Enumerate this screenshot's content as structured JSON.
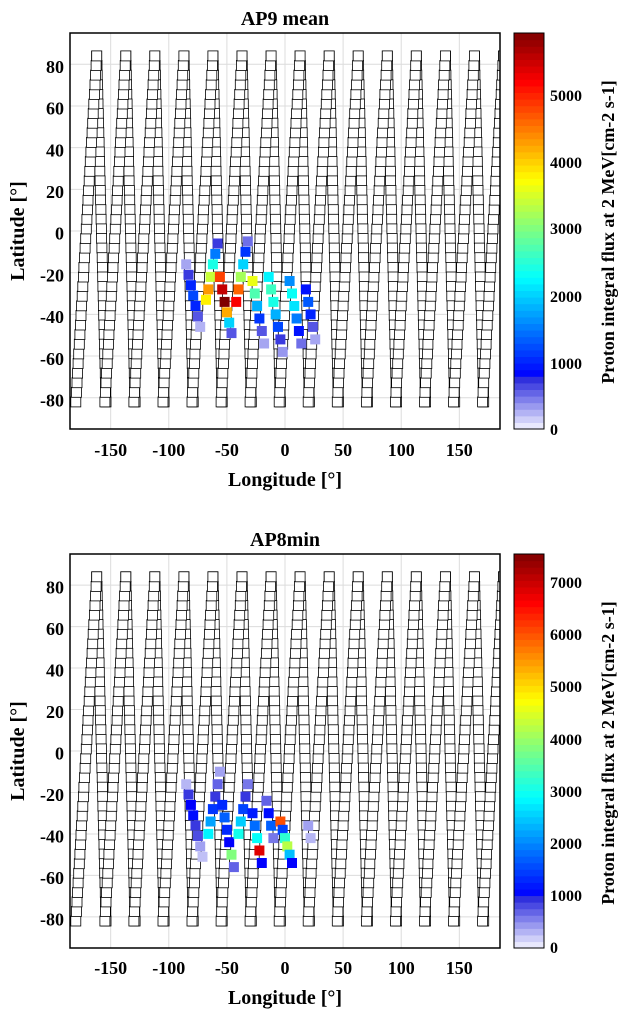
{
  "chart_data": [
    {
      "type": "scatter",
      "title": "AP9 mean",
      "xlabel": "Longitude [°]",
      "ylabel": "Latitude [°]",
      "xlim": [
        -185,
        185
      ],
      "ylim": [
        -95,
        95
      ],
      "x_ticks": [
        "-150",
        "-100",
        "-50",
        "0",
        "50",
        "100",
        "150"
      ],
      "y_ticks": [
        "80",
        "60",
        "40",
        "20",
        "0",
        "-20",
        "-40",
        "-60",
        "-80"
      ],
      "grid": true,
      "marker": "square",
      "colorbar": {
        "label": "Proton integral flux at 2 MeV[cm-2 s-1]",
        "range": [
          0,
          5900
        ],
        "ticks": [
          "0",
          "1000",
          "2000",
          "3000",
          "4000",
          "5000"
        ],
        "colormap": "jet"
      },
      "orbit_tracks": [
        {
          "lon": -180,
          "lat_low": -82,
          "lat_high": 84
        },
        {
          "lon": -155,
          "lat_low": -82,
          "lat_high": 84
        },
        {
          "lon": -130,
          "lat_low": -82,
          "lat_high": 84
        },
        {
          "lon": -105,
          "lat_low": -82,
          "lat_high": 84
        },
        {
          "lon": -80,
          "lat_low": -82,
          "lat_high": 84
        },
        {
          "lon": -55,
          "lat_low": -82,
          "lat_high": 84
        },
        {
          "lon": -30,
          "lat_low": -82,
          "lat_high": 84
        },
        {
          "lon": -5,
          "lat_low": -82,
          "lat_high": 84
        },
        {
          "lon": 20,
          "lat_low": -82,
          "lat_high": 84
        },
        {
          "lon": 45,
          "lat_low": -82,
          "lat_high": 84
        },
        {
          "lon": 70,
          "lat_low": -82,
          "lat_high": 84
        },
        {
          "lon": 95,
          "lat_low": -82,
          "lat_high": 84
        },
        {
          "lon": 120,
          "lat_low": -82,
          "lat_high": 84
        },
        {
          "lon": 145,
          "lat_low": -82,
          "lat_high": 84
        },
        {
          "lon": 170,
          "lat_low": -82,
          "lat_high": 84
        }
      ],
      "flux_points": [
        {
          "lon": -85,
          "lat": -16,
          "flux": 300
        },
        {
          "lon": -83,
          "lat": -21,
          "flux": 700
        },
        {
          "lon": -81,
          "lat": -26,
          "flux": 1000
        },
        {
          "lon": -79,
          "lat": -31,
          "flux": 1200
        },
        {
          "lon": -77,
          "lat": -36,
          "flux": 1000
        },
        {
          "lon": -75,
          "lat": -41,
          "flux": 600
        },
        {
          "lon": -73,
          "lat": -46,
          "flux": 250
        },
        {
          "lon": -68,
          "lat": -33,
          "flux": 3800
        },
        {
          "lon": -66,
          "lat": -28,
          "flux": 4300
        },
        {
          "lon": -64,
          "lat": -22,
          "flux": 3400
        },
        {
          "lon": -62,
          "lat": -16,
          "flux": 2400
        },
        {
          "lon": -60,
          "lat": -11,
          "flux": 1500
        },
        {
          "lon": -58,
          "lat": -6,
          "flux": 700
        },
        {
          "lon": -56,
          "lat": -22,
          "flux": 4800
        },
        {
          "lon": -54,
          "lat": -28,
          "flux": 5500
        },
        {
          "lon": -52,
          "lat": -34,
          "flux": 5900
        },
        {
          "lon": -50,
          "lat": -39,
          "flux": 4200
        },
        {
          "lon": -48,
          "lat": -44,
          "flux": 2000
        },
        {
          "lon": -46,
          "lat": -49,
          "flux": 600
        },
        {
          "lon": -42,
          "lat": -34,
          "flux": 5200
        },
        {
          "lon": -40,
          "lat": -28,
          "flux": 4600
        },
        {
          "lon": -38,
          "lat": -22,
          "flux": 3200
        },
        {
          "lon": -36,
          "lat": -16,
          "flux": 2000
        },
        {
          "lon": -34,
          "lat": -10,
          "flux": 1100
        },
        {
          "lon": -32,
          "lat": -5,
          "flux": 500
        },
        {
          "lon": -28,
          "lat": -24,
          "flux": 3600
        },
        {
          "lon": -26,
          "lat": -30,
          "flux": 2700
        },
        {
          "lon": -24,
          "lat": -36,
          "flux": 1800
        },
        {
          "lon": -22,
          "lat": -42,
          "flux": 1100
        },
        {
          "lon": -20,
          "lat": -48,
          "flux": 600
        },
        {
          "lon": -18,
          "lat": -54,
          "flux": 300
        },
        {
          "lon": -14,
          "lat": -22,
          "flux": 2200
        },
        {
          "lon": -12,
          "lat": -28,
          "flux": 2600
        },
        {
          "lon": -10,
          "lat": -34,
          "flux": 2400
        },
        {
          "lon": -8,
          "lat": -40,
          "flux": 1800
        },
        {
          "lon": -6,
          "lat": -46,
          "flux": 1200
        },
        {
          "lon": -4,
          "lat": -52,
          "flux": 700
        },
        {
          "lon": -2,
          "lat": -58,
          "flux": 350
        },
        {
          "lon": 4,
          "lat": -24,
          "flux": 1600
        },
        {
          "lon": 6,
          "lat": -30,
          "flux": 2300
        },
        {
          "lon": 8,
          "lat": -36,
          "flux": 2100
        },
        {
          "lon": 10,
          "lat": -42,
          "flux": 1500
        },
        {
          "lon": 12,
          "lat": -48,
          "flux": 900
        },
        {
          "lon": 14,
          "lat": -54,
          "flux": 500
        },
        {
          "lon": 18,
          "lat": -28,
          "flux": 900
        },
        {
          "lon": 20,
          "lat": -34,
          "flux": 1300
        },
        {
          "lon": 22,
          "lat": -40,
          "flux": 1000
        },
        {
          "lon": 24,
          "lat": -46,
          "flux": 600
        },
        {
          "lon": 26,
          "lat": -52,
          "flux": 300
        }
      ]
    },
    {
      "type": "scatter",
      "title": "AP8min",
      "xlabel": "Longitude [°]",
      "ylabel": "Latitude [°]",
      "xlim": [
        -185,
        185
      ],
      "ylim": [
        -95,
        95
      ],
      "x_ticks": [
        "-150",
        "-100",
        "-50",
        "0",
        "50",
        "100",
        "150"
      ],
      "y_ticks": [
        "80",
        "60",
        "40",
        "20",
        "0",
        "-20",
        "-40",
        "-60",
        "-80"
      ],
      "grid": true,
      "marker": "square",
      "colorbar": {
        "label": "Proton integral flux at 2 MeV[cm-2 s-1]",
        "range": [
          0,
          7500
        ],
        "ticks": [
          "0",
          "1000",
          "2000",
          "3000",
          "4000",
          "5000",
          "6000",
          "7000"
        ],
        "colormap": "jet"
      },
      "orbit_tracks": [
        {
          "lon": -180,
          "lat_low": -82,
          "lat_high": 84
        },
        {
          "lon": -155,
          "lat_low": -82,
          "lat_high": 84
        },
        {
          "lon": -130,
          "lat_low": -82,
          "lat_high": 84
        },
        {
          "lon": -105,
          "lat_low": -82,
          "lat_high": 84
        },
        {
          "lon": -80,
          "lat_low": -82,
          "lat_high": 84
        },
        {
          "lon": -55,
          "lat_low": -82,
          "lat_high": 84
        },
        {
          "lon": -30,
          "lat_low": -82,
          "lat_high": 84
        },
        {
          "lon": -5,
          "lat_low": -82,
          "lat_high": 84
        },
        {
          "lon": 20,
          "lat_low": -82,
          "lat_high": 84
        },
        {
          "lon": 45,
          "lat_low": -82,
          "lat_high": 84
        },
        {
          "lon": 70,
          "lat_low": -82,
          "lat_high": 84
        },
        {
          "lon": 95,
          "lat_low": -82,
          "lat_high": 84
        },
        {
          "lon": 120,
          "lat_low": -82,
          "lat_high": 84
        },
        {
          "lon": 145,
          "lat_low": -82,
          "lat_high": 84
        },
        {
          "lon": 170,
          "lat_low": -82,
          "lat_high": 84
        }
      ],
      "flux_points": [
        {
          "lon": -85,
          "lat": -16,
          "flux": 300
        },
        {
          "lon": -83,
          "lat": -21,
          "flux": 900
        },
        {
          "lon": -81,
          "lat": -26,
          "flux": 1000
        },
        {
          "lon": -79,
          "lat": -31,
          "flux": 1100
        },
        {
          "lon": -77,
          "lat": -36,
          "flux": 900
        },
        {
          "lon": -75,
          "lat": -41,
          "flux": 800
        },
        {
          "lon": -73,
          "lat": -46,
          "flux": 400
        },
        {
          "lon": -71,
          "lat": -51,
          "flux": 250
        },
        {
          "lon": -66,
          "lat": -40,
          "flux": 2800
        },
        {
          "lon": -64,
          "lat": -34,
          "flux": 2200
        },
        {
          "lon": -62,
          "lat": -28,
          "flux": 1400
        },
        {
          "lon": -60,
          "lat": -22,
          "flux": 900
        },
        {
          "lon": -58,
          "lat": -16,
          "flux": 700
        },
        {
          "lon": -56,
          "lat": -10,
          "flux": 400
        },
        {
          "lon": -54,
          "lat": -26,
          "flux": 1300
        },
        {
          "lon": -52,
          "lat": -32,
          "flux": 1700
        },
        {
          "lon": -50,
          "lat": -38,
          "flux": 1300
        },
        {
          "lon": -48,
          "lat": -44,
          "flux": 1000
        },
        {
          "lon": -46,
          "lat": -50,
          "flux": 3800
        },
        {
          "lon": -44,
          "lat": -56,
          "flux": 700
        },
        {
          "lon": -40,
          "lat": -40,
          "flux": 3000
        },
        {
          "lon": -38,
          "lat": -34,
          "flux": 2500
        },
        {
          "lon": -36,
          "lat": -28,
          "flux": 1500
        },
        {
          "lon": -34,
          "lat": -22,
          "flux": 900
        },
        {
          "lon": -32,
          "lat": -16,
          "flux": 600
        },
        {
          "lon": -28,
          "lat": -30,
          "flux": 1200
        },
        {
          "lon": -26,
          "lat": -36,
          "flux": 1800
        },
        {
          "lon": -24,
          "lat": -42,
          "flux": 2900
        },
        {
          "lon": -22,
          "lat": -48,
          "flux": 6800
        },
        {
          "lon": -20,
          "lat": -54,
          "flux": 1000
        },
        {
          "lon": -16,
          "lat": -24,
          "flux": 700
        },
        {
          "lon": -14,
          "lat": -30,
          "flux": 1100
        },
        {
          "lon": -12,
          "lat": -36,
          "flux": 1700
        },
        {
          "lon": -10,
          "lat": -42,
          "flux": 600
        },
        {
          "lon": -4,
          "lat": -34,
          "flux": 6000
        },
        {
          "lon": -2,
          "lat": -38,
          "flux": 1500
        },
        {
          "lon": 0,
          "lat": -42,
          "flux": 3200
        },
        {
          "lon": 2,
          "lat": -46,
          "flux": 4200
        },
        {
          "lon": 4,
          "lat": -50,
          "flux": 2400
        },
        {
          "lon": 6,
          "lat": -54,
          "flux": 1000
        },
        {
          "lon": 20,
          "lat": -36,
          "flux": 400
        },
        {
          "lon": 22,
          "lat": -42,
          "flux": 300
        }
      ]
    }
  ]
}
